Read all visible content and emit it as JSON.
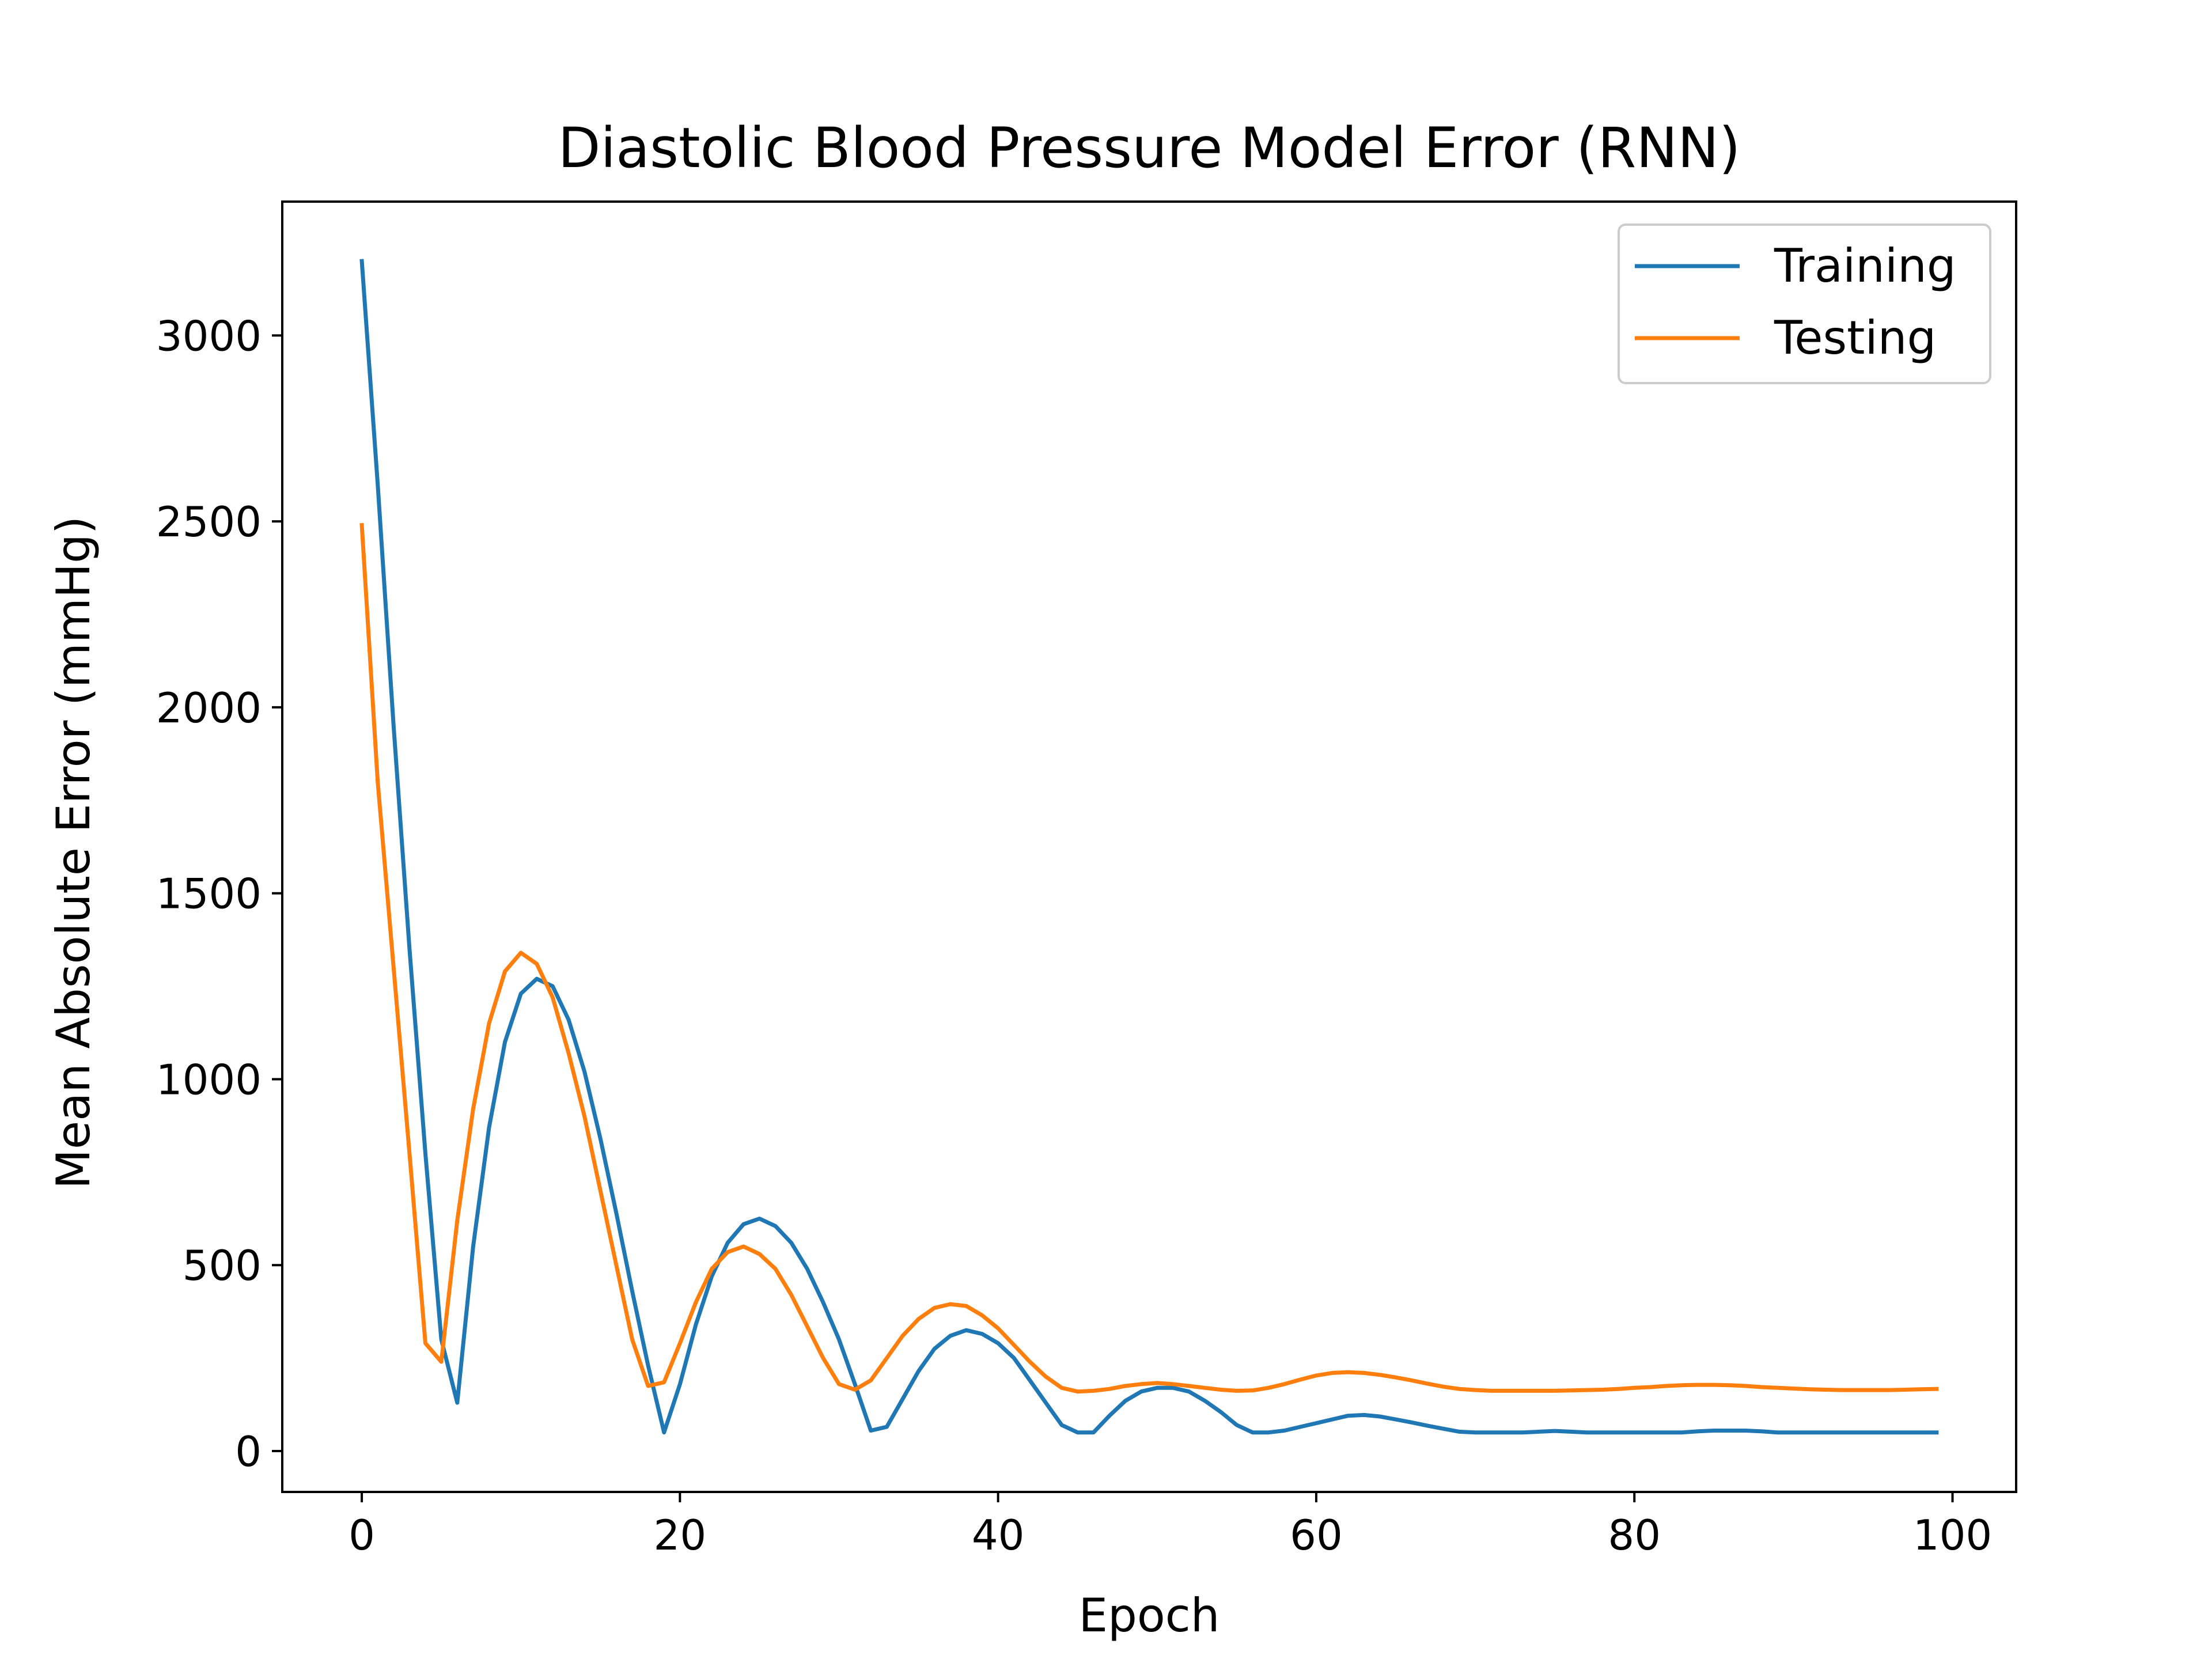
{
  "chart_data": {
    "type": "line",
    "title": "Diastolic Blood Pressure Model Error (RNN)",
    "xlabel": "Epoch",
    "ylabel": "Mean Absolute Error (mmHg)",
    "xlim": [
      -5,
      104
    ],
    "ylim": [
      -110,
      3360
    ],
    "xticks": [
      0,
      20,
      40,
      60,
      80,
      100
    ],
    "yticks": [
      0,
      500,
      1000,
      1500,
      2000,
      2500,
      3000
    ],
    "grid": false,
    "legend_position": "top-right",
    "series": [
      {
        "name": "Training",
        "color": "#1f77b4",
        "x": [
          0,
          1,
          2,
          3,
          4,
          5,
          6,
          7,
          8,
          9,
          10,
          11,
          12,
          13,
          14,
          15,
          16,
          17,
          18,
          19,
          20,
          21,
          22,
          23,
          24,
          25,
          26,
          27,
          28,
          29,
          30,
          31,
          32,
          33,
          34,
          35,
          36,
          37,
          38,
          39,
          40,
          41,
          42,
          43,
          44,
          45,
          46,
          47,
          48,
          49,
          50,
          51,
          52,
          53,
          54,
          55,
          56,
          57,
          58,
          59,
          60,
          61,
          62,
          63,
          64,
          65,
          66,
          67,
          68,
          69,
          70,
          71,
          72,
          73,
          74,
          75,
          76,
          77,
          78,
          79,
          80,
          81,
          82,
          83,
          84,
          85,
          86,
          87,
          88,
          89,
          90,
          91,
          92,
          93,
          94,
          95,
          96,
          97,
          98,
          99
        ],
        "y": [
          3200,
          2600,
          1950,
          1350,
          800,
          300,
          130,
          550,
          870,
          1100,
          1230,
          1270,
          1250,
          1160,
          1020,
          840,
          640,
          430,
          230,
          50,
          180,
          340,
          470,
          560,
          610,
          625,
          605,
          560,
          490,
          400,
          300,
          180,
          55,
          65,
          140,
          215,
          275,
          310,
          325,
          315,
          290,
          250,
          190,
          130,
          70,
          50,
          50,
          95,
          135,
          160,
          170,
          170,
          160,
          135,
          105,
          70,
          50,
          50,
          55,
          65,
          75,
          85,
          95,
          97,
          93,
          85,
          77,
          68,
          60,
          52,
          50,
          50,
          50,
          50,
          52,
          54,
          52,
          50,
          50,
          50,
          50,
          50,
          50,
          50,
          53,
          55,
          55,
          55,
          53,
          50,
          50,
          50,
          50,
          50,
          50,
          50,
          50,
          50,
          50,
          50
        ]
      },
      {
        "name": "Testing",
        "color": "#ff7f0e",
        "x": [
          0,
          1,
          2,
          3,
          4,
          5,
          6,
          7,
          8,
          9,
          10,
          11,
          12,
          13,
          14,
          15,
          16,
          17,
          18,
          19,
          20,
          21,
          22,
          23,
          24,
          25,
          26,
          27,
          28,
          29,
          30,
          31,
          32,
          33,
          34,
          35,
          36,
          37,
          38,
          39,
          40,
          41,
          42,
          43,
          44,
          45,
          46,
          47,
          48,
          49,
          50,
          51,
          52,
          53,
          54,
          55,
          56,
          57,
          58,
          59,
          60,
          61,
          62,
          63,
          64,
          65,
          66,
          67,
          68,
          69,
          70,
          71,
          72,
          73,
          74,
          75,
          76,
          77,
          78,
          79,
          80,
          81,
          82,
          83,
          84,
          85,
          86,
          87,
          88,
          89,
          90,
          91,
          92,
          93,
          94,
          95,
          96,
          97,
          98,
          99
        ],
        "y": [
          2490,
          1800,
          1300,
          800,
          290,
          240,
          620,
          920,
          1150,
          1290,
          1340,
          1310,
          1220,
          1070,
          900,
          700,
          500,
          300,
          175,
          185,
          290,
          400,
          490,
          535,
          550,
          530,
          490,
          420,
          335,
          250,
          180,
          165,
          190,
          250,
          310,
          355,
          385,
          395,
          390,
          365,
          330,
          285,
          240,
          200,
          170,
          160,
          162,
          167,
          175,
          180,
          183,
          180,
          175,
          170,
          165,
          162,
          163,
          170,
          180,
          192,
          203,
          210,
          212,
          210,
          205,
          198,
          190,
          181,
          173,
          167,
          164,
          162,
          162,
          162,
          162,
          162,
          163,
          164,
          165,
          167,
          170,
          172,
          175,
          177,
          178,
          178,
          177,
          175,
          172,
          170,
          168,
          166,
          165,
          164,
          164,
          164,
          164,
          165,
          166,
          167
        ]
      }
    ]
  }
}
